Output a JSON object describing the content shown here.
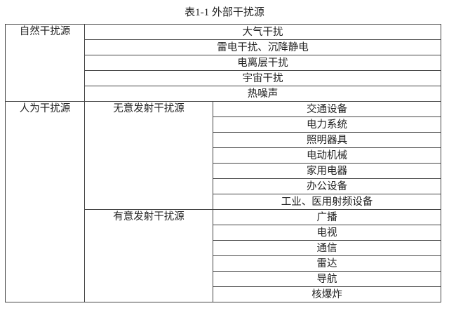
{
  "title": "表1-1  外部干扰源",
  "natural": {
    "label": "自然干扰源",
    "items": [
      "大气干扰",
      "雷电干扰、沉降静电",
      "电离层干扰",
      "宇宙干扰",
      "热噪声"
    ]
  },
  "human": {
    "label": "人为干扰源",
    "unintentional": {
      "label": "无意发射干扰源",
      "items": [
        "交通设备",
        "电力系统",
        "照明器具",
        "电动机械",
        "家用电器",
        "办公设备",
        "工业、医用射频设备"
      ]
    },
    "intentional": {
      "label": "有意发射干扰源",
      "items": [
        "广播",
        "电视",
        "通信",
        "雷达",
        "导航",
        "核爆炸"
      ]
    }
  }
}
